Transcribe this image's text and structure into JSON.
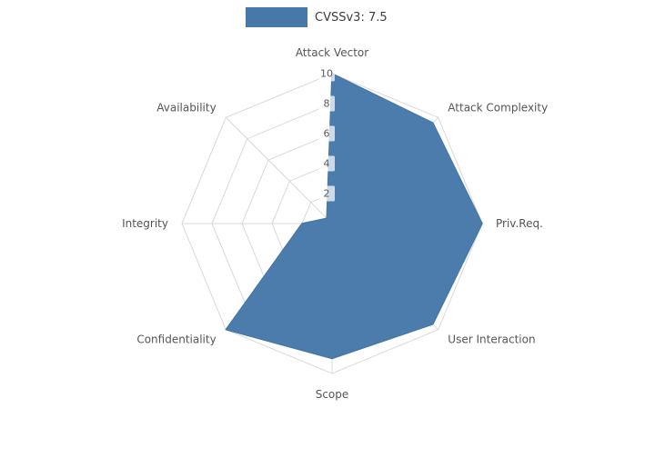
{
  "legend": {
    "label": "CVSSv3: 7.5",
    "swatch_color": "#4678a8"
  },
  "chart_data": {
    "type": "radar",
    "title": "CVSSv3: 7.5",
    "axes": [
      "Attack Vector",
      "Attack Complexity",
      "Priv.Req.",
      "User Interaction",
      "Scope",
      "Confidentiality",
      "Integrity",
      "Availability"
    ],
    "values": [
      10,
      9.5,
      10,
      9.5,
      9,
      10,
      2,
      0.5
    ],
    "ticks": [
      2,
      4,
      6,
      8,
      10
    ],
    "rmax": 10,
    "fill_color": "#4678a8",
    "grid_color": "#d9d9d9",
    "label_color": "#555555",
    "tick_label_color": "#5a5a5a",
    "grid": true,
    "legend_position": "top-center"
  }
}
